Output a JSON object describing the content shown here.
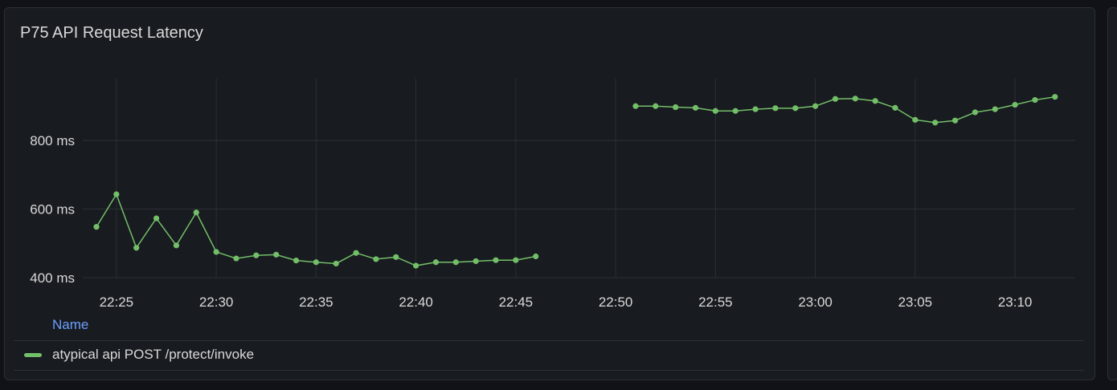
{
  "panel": {
    "title": "P75 API Request Latency"
  },
  "legend": {
    "header": "Name",
    "items": [
      {
        "label": "atypical api POST /protect/invoke",
        "color": "#73bf69"
      }
    ]
  },
  "colors": {
    "background": "#111217",
    "panel": "#181b1f",
    "grid": "#2c2f35",
    "series": "#73bf69",
    "axis_text": "#d8d9da",
    "legend_header": "#6e9fff"
  },
  "chart_data": {
    "type": "line",
    "title": "P75 API Request Latency",
    "xlabel": "",
    "ylabel": "",
    "x_ticks": [
      "22:25",
      "22:30",
      "22:35",
      "22:40",
      "22:45",
      "22:50",
      "22:55",
      "23:00",
      "23:05",
      "23:10"
    ],
    "y_ticks": [
      "400 ms",
      "600 ms",
      "800 ms"
    ],
    "y_tick_values": [
      400,
      600,
      800
    ],
    "ylim": [
      400,
      980
    ],
    "grid": true,
    "legend_position": "bottom",
    "series": [
      {
        "name": "atypical api POST /protect/invoke",
        "color": "#73bf69",
        "segments": [
          {
            "x": [
              "22:24",
              "22:25",
              "22:26",
              "22:27",
              "22:28",
              "22:29",
              "22:30",
              "22:31",
              "22:32",
              "22:33",
              "22:34",
              "22:35",
              "22:36",
              "22:37",
              "22:38",
              "22:39",
              "22:40",
              "22:41",
              "22:42",
              "22:43",
              "22:44",
              "22:45",
              "22:46"
            ],
            "y": [
              548,
              643,
              487,
              573,
              494,
              590,
              475,
              456,
              465,
              467,
              450,
              445,
              441,
              472,
              454,
              460,
              435,
              445,
              445,
              448,
              451,
              451,
              462
            ]
          },
          {
            "x": [
              "22:51",
              "22:52",
              "22:53",
              "22:54",
              "22:55",
              "22:56",
              "22:57",
              "22:58",
              "22:59",
              "23:00",
              "23:01",
              "23:02",
              "23:03",
              "23:04",
              "23:05",
              "23:06",
              "23:07",
              "23:08",
              "23:09",
              "23:10",
              "23:11",
              "23:12"
            ],
            "y": [
              900,
              900,
              897,
              895,
              886,
              886,
              891,
              894,
              894,
              900,
              921,
              922,
              915,
              895,
              860,
              852,
              858,
              882,
              891,
              904,
              918,
              927
            ]
          }
        ]
      }
    ]
  }
}
